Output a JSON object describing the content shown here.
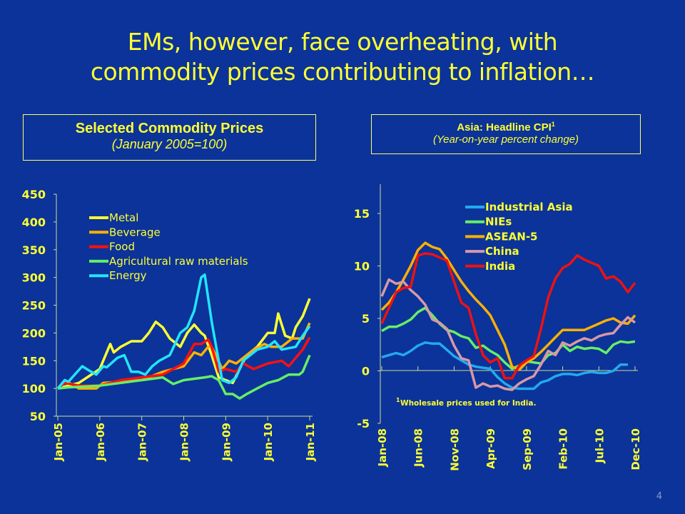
{
  "slide": {
    "title_line1": "EMs, however, face overheating, with",
    "title_line2": "commodity prices contributing to inflation…",
    "page_number": "4",
    "background": "#0b3399"
  },
  "chart_data": [
    {
      "type": "line",
      "title": "Selected Commodity Prices",
      "subtitle": "(January 2005=100)",
      "ylim": [
        50,
        450
      ],
      "yticks": [
        "450",
        "400",
        "350",
        "300",
        "250",
        "200",
        "150",
        "100",
        "50"
      ],
      "xlim": [
        "2005-01",
        "2011-01"
      ],
      "xticks": [
        {
          "date": "2005-01",
          "label": "Jan-05"
        },
        {
          "date": "2006-01",
          "label": "Jan-06"
        },
        {
          "date": "2007-01",
          "label": "Jan-07"
        },
        {
          "date": "2008-01",
          "label": "Jan-08"
        },
        {
          "date": "2009-01",
          "label": "Jan-09"
        },
        {
          "date": "2010-01",
          "label": "Jan-10"
        },
        {
          "date": "2011-01",
          "label": "Jan-11"
        }
      ],
      "legend": "top-left",
      "grid": false,
      "series": [
        {
          "name": "Metal",
          "color": "#ffff33",
          "points": [
            [
              "2005-01",
              100
            ],
            [
              "2005-07",
              110
            ],
            [
              "2006-01",
              135
            ],
            [
              "2006-04",
              180
            ],
            [
              "2006-05",
              165
            ],
            [
              "2006-07",
              175
            ],
            [
              "2006-10",
              185
            ],
            [
              "2007-01",
              185
            ],
            [
              "2007-03",
              200
            ],
            [
              "2007-05",
              220
            ],
            [
              "2007-07",
              210
            ],
            [
              "2007-09",
              190
            ],
            [
              "2007-12",
              175
            ],
            [
              "2008-02",
              200
            ],
            [
              "2008-04",
              215
            ],
            [
              "2008-06",
              200
            ],
            [
              "2008-07",
              195
            ],
            [
              "2008-09",
              160
            ],
            [
              "2008-11",
              120
            ],
            [
              "2009-01",
              115
            ],
            [
              "2009-03",
              110
            ],
            [
              "2009-05",
              135
            ],
            [
              "2009-07",
              160
            ],
            [
              "2009-10",
              175
            ],
            [
              "2010-01",
              200
            ],
            [
              "2010-03",
              200
            ],
            [
              "2010-04",
              235
            ],
            [
              "2010-06",
              195
            ],
            [
              "2010-08",
              190
            ],
            [
              "2010-09",
              210
            ],
            [
              "2010-11",
              230
            ],
            [
              "2011-01",
              262
            ]
          ]
        },
        {
          "name": "Beverage",
          "color": "#ffb000",
          "points": [
            [
              "2005-01",
              100
            ],
            [
              "2005-03",
              115
            ],
            [
              "2005-07",
              100
            ],
            [
              "2005-12",
              100
            ],
            [
              "2006-02",
              110
            ],
            [
              "2007-01",
              115
            ],
            [
              "2007-07",
              130
            ],
            [
              "2008-01",
              140
            ],
            [
              "2008-04",
              165
            ],
            [
              "2008-06",
              160
            ],
            [
              "2008-08",
              175
            ],
            [
              "2008-09",
              175
            ],
            [
              "2008-12",
              135
            ],
            [
              "2009-02",
              150
            ],
            [
              "2009-04",
              145
            ],
            [
              "2009-06",
              155
            ],
            [
              "2009-09",
              170
            ],
            [
              "2009-12",
              180
            ],
            [
              "2010-02",
              175
            ],
            [
              "2010-05",
              175
            ],
            [
              "2010-08",
              190
            ],
            [
              "2010-11",
              190
            ],
            [
              "2011-01",
              218
            ]
          ]
        },
        {
          "name": "Food",
          "color": "#ff1010",
          "points": [
            [
              "2005-01",
              100
            ],
            [
              "2005-03",
              110
            ],
            [
              "2005-07",
              105
            ],
            [
              "2006-01",
              105
            ],
            [
              "2006-07",
              115
            ],
            [
              "2007-01",
              120
            ],
            [
              "2007-07",
              125
            ],
            [
              "2008-01",
              145
            ],
            [
              "2008-04",
              180
            ],
            [
              "2008-06",
              180
            ],
            [
              "2008-08",
              188
            ],
            [
              "2008-09",
              175
            ],
            [
              "2008-11",
              130
            ],
            [
              "2009-01",
              135
            ],
            [
              "2009-04",
              130
            ],
            [
              "2009-06",
              145
            ],
            [
              "2009-09",
              135
            ],
            [
              "2010-01",
              145
            ],
            [
              "2010-05",
              150
            ],
            [
              "2010-07",
              140
            ],
            [
              "2010-09",
              155
            ],
            [
              "2010-11",
              170
            ],
            [
              "2011-01",
              192
            ]
          ]
        },
        {
          "name": "Agricultural raw materials",
          "color": "#66ee66",
          "points": [
            [
              "2005-01",
              100
            ],
            [
              "2005-04",
              102
            ],
            [
              "2006-01",
              105
            ],
            [
              "2007-01",
              115
            ],
            [
              "2007-07",
              120
            ],
            [
              "2007-10",
              108
            ],
            [
              "2008-01",
              115
            ],
            [
              "2008-07",
              120
            ],
            [
              "2008-09",
              122
            ],
            [
              "2008-11",
              115
            ],
            [
              "2009-01",
              90
            ],
            [
              "2009-03",
              90
            ],
            [
              "2009-05",
              82
            ],
            [
              "2009-07",
              90
            ],
            [
              "2009-10",
              100
            ],
            [
              "2010-01",
              110
            ],
            [
              "2010-04",
              115
            ],
            [
              "2010-07",
              125
            ],
            [
              "2010-10",
              125
            ],
            [
              "2010-11",
              130
            ],
            [
              "2011-01",
              160
            ]
          ]
        },
        {
          "name": "Energy",
          "color": "#22e5ff",
          "points": [
            [
              "2005-01",
              100
            ],
            [
              "2005-03",
              115
            ],
            [
              "2005-04",
              112
            ],
            [
              "2005-08",
              140
            ],
            [
              "2005-10",
              132
            ],
            [
              "2005-12",
              125
            ],
            [
              "2006-02",
              140
            ],
            [
              "2006-03",
              138
            ],
            [
              "2006-06",
              155
            ],
            [
              "2006-08",
              160
            ],
            [
              "2006-10",
              130
            ],
            [
              "2006-12",
              130
            ],
            [
              "2007-02",
              125
            ],
            [
              "2007-04",
              140
            ],
            [
              "2007-06",
              150
            ],
            [
              "2007-09",
              160
            ],
            [
              "2007-12",
              200
            ],
            [
              "2008-02",
              210
            ],
            [
              "2008-04",
              240
            ],
            [
              "2008-06",
              300
            ],
            [
              "2008-07",
              305
            ],
            [
              "2008-09",
              220
            ],
            [
              "2008-12",
              115
            ],
            [
              "2009-02",
              110
            ],
            [
              "2009-04",
              120
            ],
            [
              "2009-06",
              150
            ],
            [
              "2009-08",
              160
            ],
            [
              "2009-10",
              170
            ],
            [
              "2010-01",
              175
            ],
            [
              "2010-03",
              185
            ],
            [
              "2010-05",
              170
            ],
            [
              "2010-09",
              175
            ],
            [
              "2010-11",
              195
            ],
            [
              "2011-01",
              212
            ]
          ]
        }
      ]
    },
    {
      "type": "line",
      "title": "Asia: Headline CPI",
      "title_sup": "1",
      "subtitle": "(Year-on-year percent change)",
      "ylim": [
        -5,
        18
      ],
      "yticks": [
        "15",
        "10",
        "5",
        "0",
        "-5"
      ],
      "xlim": [
        "2008-01",
        "2010-12"
      ],
      "xticks": [
        {
          "date": "2008-01",
          "label": "Jan-08"
        },
        {
          "date": "2008-06",
          "label": "Jun-08"
        },
        {
          "date": "2008-11",
          "label": "Nov-08"
        },
        {
          "date": "2009-04",
          "label": "Apr-09"
        },
        {
          "date": "2009-09",
          "label": "Sep-09"
        },
        {
          "date": "2010-02",
          "label": "Feb-10"
        },
        {
          "date": "2010-07",
          "label": "Jul-10"
        },
        {
          "date": "2010-12",
          "label": "Dec-10"
        }
      ],
      "legend": "top-center",
      "grid": false,
      "footnote_mark": "1",
      "footnote": "Wholesale prices used for India.",
      "series": [
        {
          "name": "Industrial Asia",
          "color": "#22aaee",
          "start": "2008-01",
          "values": [
            1.3,
            1.5,
            1.7,
            1.5,
            1.9,
            2.4,
            2.7,
            2.6,
            2.6,
            2.0,
            1.4,
            1.0,
            0.6,
            0.4,
            0.3,
            0.2,
            -0.6,
            -1.2,
            -1.6,
            -1.7,
            -1.7,
            -1.7,
            -1.1,
            -0.9,
            -0.5,
            -0.3,
            -0.3,
            -0.4,
            -0.2,
            -0.1,
            -0.2,
            -0.2,
            0.0,
            0.6,
            0.6
          ]
        },
        {
          "name": "NIEs",
          "color": "#66ee66",
          "start": "2008-01",
          "values": [
            3.8,
            4.2,
            4.2,
            4.5,
            4.9,
            5.6,
            6.0,
            5.3,
            4.5,
            3.9,
            3.7,
            3.3,
            3.1,
            2.2,
            2.4,
            1.9,
            1.5,
            0.8,
            0.2,
            0.5,
            0.9,
            0.8,
            0.7,
            1.5,
            1.7,
            2.5,
            1.9,
            2.3,
            2.1,
            2.2,
            2.1,
            1.7,
            2.5,
            2.8,
            2.7,
            2.8
          ]
        },
        {
          "name": "ASEAN-5",
          "color": "#ffb000",
          "start": "2008-01",
          "values": [
            5.8,
            6.5,
            7.5,
            8.7,
            10.0,
            11.5,
            12.2,
            11.8,
            11.6,
            10.7,
            9.6,
            8.5,
            7.6,
            6.8,
            6.1,
            5.3,
            3.9,
            2.5,
            0.4,
            0.1,
            0.8,
            1.2,
            1.8,
            2.5,
            3.2,
            3.9,
            3.9,
            3.9,
            3.9,
            4.2,
            4.5,
            4.8,
            5.0,
            4.6,
            4.5,
            5.3
          ]
        },
        {
          "name": "China",
          "color": "#d898a8",
          "start": "2008-01",
          "values": [
            7.1,
            8.7,
            8.3,
            8.5,
            7.7,
            7.1,
            6.3,
            4.9,
            4.6,
            4.0,
            2.4,
            1.2,
            1.0,
            -1.6,
            -1.2,
            -1.5,
            -1.4,
            -1.7,
            -1.8,
            -1.2,
            -0.8,
            -0.5,
            0.6,
            1.9,
            1.5,
            2.7,
            2.4,
            2.8,
            3.1,
            2.9,
            3.3,
            3.5,
            3.6,
            4.4,
            5.1,
            4.6
          ]
        },
        {
          "name": "India",
          "color": "#ee1111",
          "start": "2008-01",
          "values": [
            4.5,
            6.0,
            7.5,
            7.9,
            8.0,
            11.0,
            11.2,
            11.1,
            10.8,
            10.5,
            8.5,
            6.5,
            6.0,
            3.5,
            1.5,
            0.8,
            1.2,
            -0.7,
            -0.7,
            0.5,
            1.0,
            1.4,
            4.0,
            7.0,
            8.8,
            9.8,
            10.2,
            11.0,
            10.6,
            10.3,
            10.0,
            8.8,
            9.0,
            8.5,
            7.5,
            8.4
          ]
        }
      ]
    }
  ]
}
